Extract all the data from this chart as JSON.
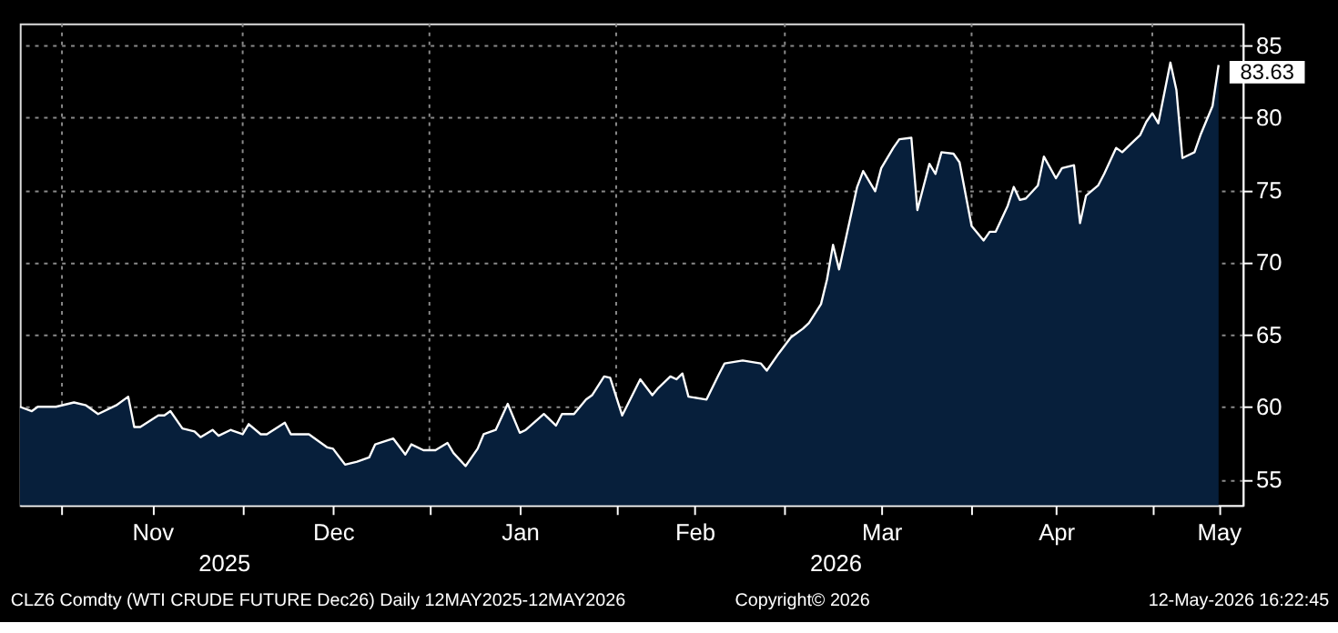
{
  "chart_data": {
    "type": "area",
    "x": [
      "2025-10-25",
      "2025-10-27",
      "2025-10-28",
      "2025-10-31",
      "2025-11-03",
      "2025-11-05",
      "2025-11-07",
      "2025-11-10",
      "2025-11-12",
      "2025-11-13",
      "2025-11-14",
      "2025-11-17",
      "2025-11-18",
      "2025-11-19",
      "2025-11-21",
      "2025-11-23",
      "2025-11-24",
      "2025-11-26",
      "2025-11-27",
      "2025-11-29",
      "2025-12-01",
      "2025-12-02",
      "2025-12-04",
      "2025-12-05",
      "2025-12-08",
      "2025-12-09",
      "2025-12-12",
      "2025-12-15",
      "2025-12-16",
      "2025-12-18",
      "2025-12-20",
      "2025-12-22",
      "2025-12-23",
      "2025-12-26",
      "2025-12-28",
      "2025-12-29",
      "2025-12-31",
      "2026-01-02",
      "2026-01-04",
      "2026-01-05",
      "2026-01-07",
      "2026-01-09",
      "2026-01-10",
      "2026-01-12",
      "2026-01-14",
      "2026-01-16",
      "2026-01-17",
      "2026-01-20",
      "2026-01-22",
      "2026-01-23",
      "2026-01-25",
      "2026-01-27",
      "2026-01-28",
      "2026-01-30",
      "2026-01-31",
      "2026-02-02",
      "2026-02-05",
      "2026-02-07",
      "2026-02-08",
      "2026-02-10",
      "2026-02-11",
      "2026-02-12",
      "2026-02-13",
      "2026-02-16",
      "2026-02-18",
      "2026-02-19",
      "2026-02-22",
      "2026-02-25",
      "2026-02-26",
      "2026-02-28",
      "2026-03-02",
      "2026-03-04",
      "2026-03-05",
      "2026-03-07",
      "2026-03-08",
      "2026-03-09",
      "2026-03-10",
      "2026-03-13",
      "2026-03-14",
      "2026-03-16",
      "2026-03-17",
      "2026-03-19",
      "2026-03-20",
      "2026-03-22",
      "2026-03-23",
      "2026-03-25",
      "2026-03-26",
      "2026-03-27",
      "2026-03-29",
      "2026-03-30",
      "2026-04-01",
      "2026-04-03",
      "2026-04-04",
      "2026-04-05",
      "2026-04-07",
      "2026-04-08",
      "2026-04-09",
      "2026-04-10",
      "2026-04-12",
      "2026-04-13",
      "2026-04-15",
      "2026-04-16",
      "2026-04-18",
      "2026-04-19",
      "2026-04-20",
      "2026-04-22",
      "2026-04-23",
      "2026-04-25",
      "2026-04-26",
      "2026-04-28",
      "2026-04-29",
      "2026-04-30",
      "2026-05-01",
      "2026-05-02",
      "2026-05-04",
      "2026-05-05",
      "2026-05-06",
      "2026-05-08",
      "2026-05-09",
      "2026-05-11",
      "2026-05-12"
    ],
    "series": [
      {
        "color": "#071f3b",
        "values": [
          60.0,
          59.7,
          60.0,
          60.0,
          60.3,
          60.1,
          59.5,
          60.1,
          60.7,
          58.6,
          58.6,
          59.4,
          59.4,
          59.7,
          58.5,
          58.3,
          57.9,
          58.4,
          58.0,
          58.4,
          58.1,
          58.8,
          58.1,
          58.1,
          58.9,
          58.1,
          58.1,
          57.2,
          57.1,
          56.0,
          56.2,
          56.5,
          57.4,
          57.8,
          56.7,
          57.4,
          57.0,
          57.0,
          57.5,
          56.8,
          55.9,
          57.1,
          58.1,
          58.4,
          60.2,
          58.2,
          58.4,
          59.5,
          58.7,
          59.5,
          59.5,
          60.5,
          60.8,
          62.1,
          62.0,
          59.4,
          61.9,
          60.8,
          61.3,
          62.1,
          61.9,
          62.3,
          60.7,
          60.5,
          62.2,
          63.0,
          63.2,
          63.0,
          62.5,
          63.7,
          64.8,
          65.4,
          65.8,
          67.1,
          68.8,
          71.2,
          69.5,
          75.2,
          76.3,
          74.9,
          76.5,
          77.9,
          78.5,
          78.6,
          73.6,
          76.8,
          76.1,
          77.6,
          77.5,
          76.9,
          72.5,
          71.5,
          72.1,
          72.1,
          73.9,
          75.2,
          74.3,
          74.4,
          75.3,
          77.3,
          75.8,
          76.5,
          76.7,
          72.7,
          74.6,
          75.3,
          76.1,
          77.9,
          77.6,
          78.4,
          78.8,
          79.7,
          80.3,
          79.6,
          83.8,
          81.9,
          77.2,
          77.6,
          78.8,
          80.8,
          83.63
        ]
      }
    ],
    "xlim": [
      "2025-10-25",
      "2026-05-16"
    ],
    "xticks": [
      {
        "value": "2025-11-01",
        "label": null
      },
      {
        "value": "2025-11-16",
        "label": "Nov"
      },
      {
        "value": "2025-12-01",
        "label": null
      },
      {
        "value": "2025-12-16",
        "label": "Dec"
      },
      {
        "value": "2026-01-01",
        "label": null
      },
      {
        "value": "2026-01-16",
        "label": "Jan"
      },
      {
        "value": "2026-02-01",
        "label": null
      },
      {
        "value": "2026-02-14",
        "label": "Feb"
      },
      {
        "value": "2026-03-01",
        "label": null
      },
      {
        "value": "2026-03-17",
        "label": "Mar"
      },
      {
        "value": "2026-04-01",
        "label": null
      },
      {
        "value": "2026-04-15",
        "label": "Apr"
      },
      {
        "value": "2026-05-01",
        "label": null
      },
      {
        "value": "2026-05-12",
        "label": "May"
      }
    ],
    "ylim": [
      53.2,
      86.5
    ],
    "yticks": [
      55,
      60,
      65,
      70,
      75,
      80,
      85
    ],
    "grid": true,
    "annotations": [
      {
        "text": "83.63",
        "x": "2026-05-12",
        "y": 83.63
      },
      "2025",
      "2026",
      "CLZ6 Comdty (WTI CRUDE FUTURE  Dec26) Daily 12MAY2025-12MAY2026",
      "Copyright© 2026",
      "12-May-2026 16:22:45"
    ]
  }
}
